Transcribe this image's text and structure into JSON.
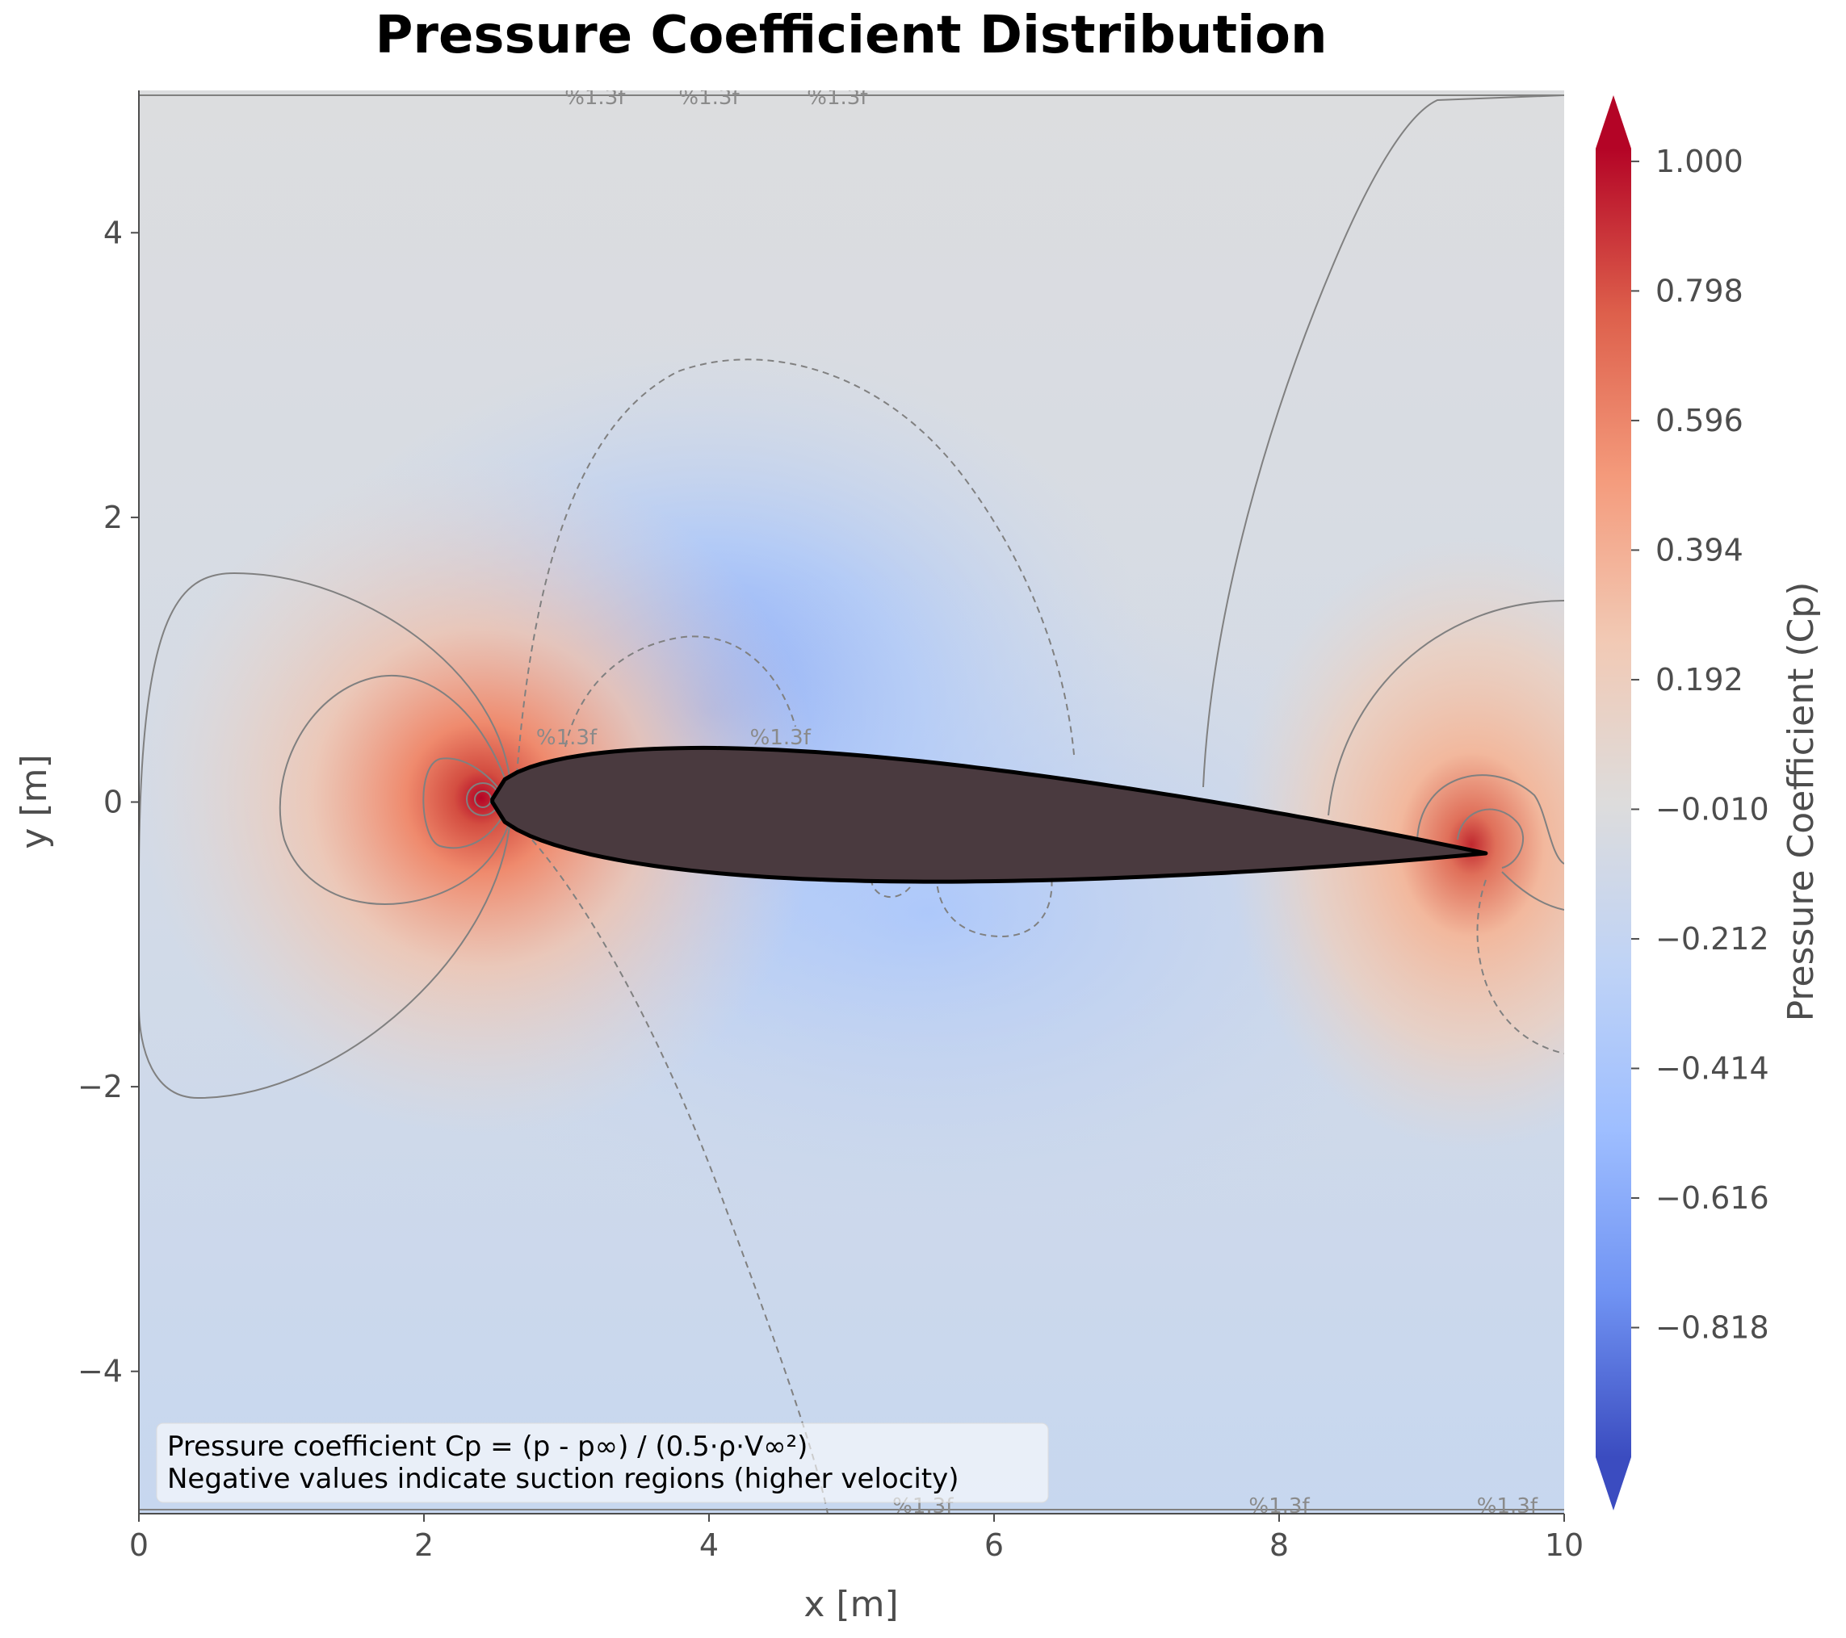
{
  "chart_data": {
    "type": "heatmap",
    "title": "Pressure Coefficient Distribution",
    "xlabel": "x [m]",
    "ylabel": "y [m]",
    "xlim": [
      0,
      10
    ],
    "ylim": [
      -5,
      5
    ],
    "x_ticks": [
      0,
      2,
      4,
      6,
      8,
      10
    ],
    "y_ticks": [
      -4,
      -2,
      0,
      2,
      4
    ],
    "x_tick_labels": [
      "0",
      "2",
      "4",
      "6",
      "8",
      "10"
    ],
    "y_tick_labels": [
      "−4",
      "−2",
      "0",
      "2",
      "4"
    ],
    "colormap": "coolwarm",
    "colorbar": {
      "label": "Pressure Coefficient (Cp)",
      "range": [
        -1.02,
        1.02
      ],
      "ticks": [
        1.0,
        0.798,
        0.596,
        0.394,
        0.192,
        -0.01,
        -0.212,
        -0.414,
        -0.616,
        -0.818
      ],
      "tick_labels": [
        "1.000",
        "0.798",
        "0.596",
        "0.394",
        "0.192",
        "−0.010",
        "−0.212",
        "−0.414",
        "−0.616",
        "−0.818"
      ],
      "extend": "both"
    },
    "airfoil": {
      "leading_edge": [
        2.48,
        0.0
      ],
      "trailing_edge": [
        9.45,
        -0.36
      ],
      "max_upper_y": 0.48,
      "min_lower_y": -0.45,
      "fill_color": "#4a3a3f"
    },
    "stagnation_points": [
      {
        "x": 2.4,
        "y": 0.03,
        "cp": 1.0
      },
      {
        "x": 9.35,
        "y": -0.3,
        "cp": 1.0
      }
    ],
    "suction_peak": {
      "x": 4.0,
      "y": 0.6,
      "cp": -0.7
    },
    "contour_label_text": "%1.3f",
    "contour_label_samples": [
      {
        "x": 3.0,
        "y": 0.45
      },
      {
        "x": 4.5,
        "y": 0.45
      },
      {
        "x": 5.5,
        "y": -4.95
      },
      {
        "x": 8.0,
        "y": -4.95
      },
      {
        "x": 9.6,
        "y": -4.95
      },
      {
        "x": 3.2,
        "y": 4.95
      },
      {
        "x": 4.0,
        "y": 4.95
      },
      {
        "x": 4.9,
        "y": 4.95
      }
    ],
    "annotation_lines": [
      "Pressure coefficient Cp = (p - p∞) / (0.5·ρ·V∞²)",
      "Negative values indicate suction regions (higher velocity)"
    ]
  }
}
